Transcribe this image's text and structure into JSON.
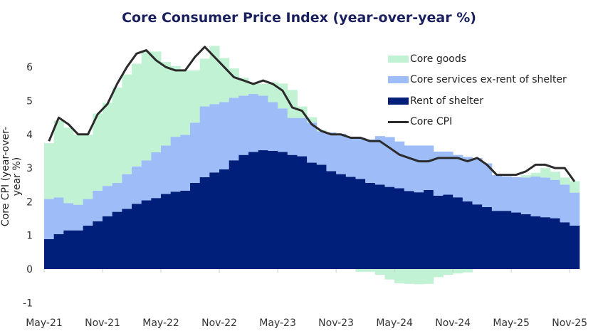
{
  "chart_data": {
    "type": "bar",
    "stacked": true,
    "title": "Core Consumer Price Index (year-over-year %)",
    "xlabel": "",
    "ylabel": "Core CPI (year-over-year %)",
    "ylim": [
      -1,
      6.8
    ],
    "yticks": [
      "-1",
      "0",
      "1",
      "2",
      "3",
      "4",
      "5",
      "6"
    ],
    "xticks": [
      "May-21",
      "Nov-21",
      "May-22",
      "Nov-22",
      "May-23",
      "Nov-23",
      "May-24",
      "Nov-24",
      "May-25",
      "Nov-25"
    ],
    "x_start": "May-21",
    "x_end": "Nov-25",
    "frequency": "monthly",
    "legend_position": "top-right",
    "grid": false,
    "series": [
      {
        "name": "Rent of shelter",
        "kind": "bar",
        "color": "#001f7a",
        "values": [
          0.89,
          1.04,
          1.15,
          1.15,
          1.29,
          1.42,
          1.57,
          1.7,
          1.79,
          1.94,
          2.04,
          2.11,
          2.23,
          2.3,
          2.33,
          2.56,
          2.73,
          2.87,
          2.96,
          3.23,
          3.39,
          3.48,
          3.53,
          3.51,
          3.48,
          3.39,
          3.35,
          3.16,
          3.1,
          2.91,
          2.82,
          2.74,
          2.68,
          2.56,
          2.51,
          2.44,
          2.4,
          2.32,
          2.28,
          2.35,
          2.18,
          2.21,
          2.13,
          2.01,
          1.92,
          1.84,
          1.73,
          1.73,
          1.68,
          1.63,
          1.57,
          1.54,
          1.51,
          1.39,
          1.29
        ]
      },
      {
        "name": "Core services ex-rent of shelter",
        "kind": "bar",
        "color": "#9ebcf7",
        "values": [
          1.19,
          1.09,
          0.81,
          0.76,
          0.79,
          0.91,
          0.9,
          0.86,
          1.03,
          1.11,
          1.19,
          1.36,
          1.44,
          1.63,
          1.66,
          1.79,
          2.1,
          2.03,
          2.0,
          1.86,
          1.76,
          1.72,
          1.62,
          1.45,
          1.29,
          1.1,
          1.14,
          1.19,
          0.99,
          1.15,
          1.2,
          1.18,
          1.22,
          1.29,
          1.44,
          1.48,
          1.39,
          1.35,
          1.39,
          1.32,
          1.31,
          1.28,
          1.26,
          1.32,
          1.38,
          1.3,
          1.06,
          1.02,
          1.05,
          1.09,
          1.18,
          1.18,
          1.14,
          1.12,
          0.98
        ]
      },
      {
        "name": "Core goods",
        "kind": "bar",
        "color": "#c2f2d4",
        "values": [
          1.66,
          2.28,
          2.24,
          2.08,
          1.91,
          2.29,
          2.47,
          2.83,
          2.96,
          3.05,
          3.23,
          2.99,
          2.48,
          2.1,
          1.91,
          1.55,
          1.42,
          1.73,
          1.31,
          0.87,
          0.53,
          0.34,
          0.35,
          0.59,
          0.74,
          0.83,
          0.34,
          0.16,
          0.04,
          0,
          0,
          0,
          -0.08,
          -0.08,
          -0.17,
          -0.31,
          -0.42,
          -0.44,
          -0.45,
          -0.44,
          -0.24,
          -0.17,
          -0.13,
          -0.1,
          0,
          0,
          0,
          0,
          0,
          0.07,
          0.11,
          0.28,
          0.24,
          0.21,
          0.34
        ]
      },
      {
        "name": "Core CPI",
        "kind": "line",
        "color": "#2b2b2b",
        "values": [
          3.8,
          4.5,
          4.3,
          4.0,
          4.0,
          4.6,
          4.9,
          5.5,
          6.0,
          6.4,
          6.5,
          6.2,
          6.0,
          5.9,
          5.9,
          6.3,
          6.6,
          6.3,
          6.0,
          5.7,
          5.6,
          5.5,
          5.6,
          5.5,
          5.3,
          4.8,
          4.7,
          4.3,
          4.1,
          4.0,
          4.0,
          3.9,
          3.9,
          3.8,
          3.8,
          3.6,
          3.4,
          3.3,
          3.2,
          3.2,
          3.3,
          3.3,
          3.3,
          3.2,
          3.3,
          3.1,
          2.8,
          2.8,
          2.8,
          2.9,
          3.1,
          3.1,
          3.0,
          3.0,
          2.6
        ]
      }
    ]
  }
}
